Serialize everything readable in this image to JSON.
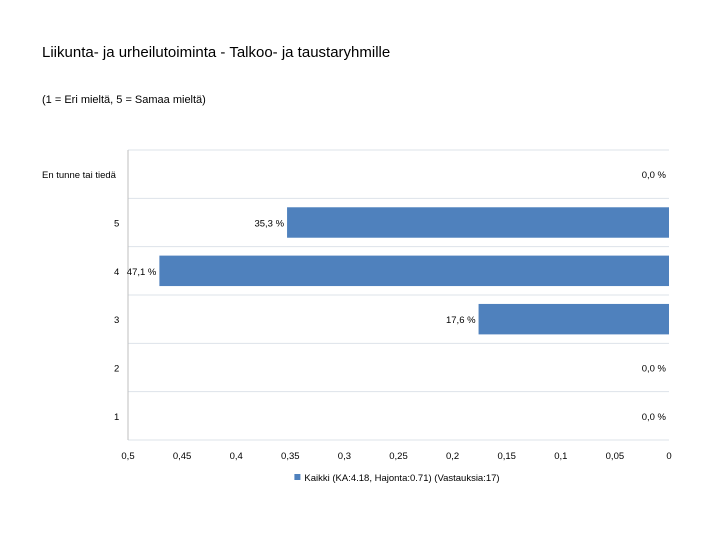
{
  "chart_data": {
    "type": "bar",
    "orientation": "horizontal",
    "title": "Liikunta- ja urheilutoiminta - Talkoo- ja taustaryhmille",
    "subtitle": "(1 = Eri mieltä, 5 = Samaa mieltä)",
    "categories": [
      "En tunne tai tiedä",
      "5",
      "4",
      "3",
      "2",
      "1"
    ],
    "series": [
      {
        "name": "Kaikki (KA:4.18, Hajonta:0.71) (Vastauksia:17)",
        "values": [
          0.0,
          0.353,
          0.471,
          0.176,
          0.0,
          0.0
        ],
        "labels": [
          "0,0 %",
          "35,3 %",
          "47,1 %",
          "17,6 %",
          "0,0 %",
          "0,0 %"
        ],
        "color": "#4f81bd"
      }
    ],
    "xlim": [
      0.5,
      0
    ],
    "x_reversed": true,
    "x_ticks": [
      0.5,
      0.45,
      0.4,
      0.35,
      0.3,
      0.25,
      0.2,
      0.15,
      0.1,
      0.05,
      0
    ],
    "x_tick_labels": [
      "0,5",
      "0,45",
      "0,4",
      "0,35",
      "0,3",
      "0,25",
      "0,2",
      "0,15",
      "0,1",
      "0,05",
      "0"
    ],
    "grid": true,
    "legend": "bottom",
    "bar_color": "#4f81bd",
    "grid_color": "#dde3ea"
  }
}
